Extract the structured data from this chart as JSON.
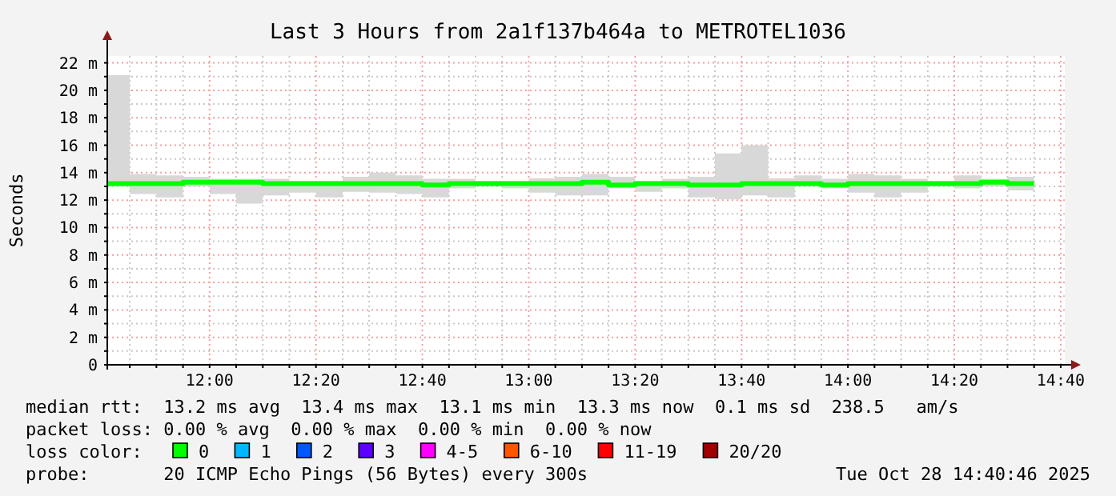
{
  "chart_data": {
    "type": "step",
    "title": "Last 3 Hours from 2a1f137b464a to METROTEL1036",
    "ylabel": "Seconds",
    "x": [
      11.6794,
      11.75,
      11.8333,
      11.9167,
      12,
      12.0833,
      12.1667,
      12.25,
      12.3333,
      12.4167,
      12.5,
      12.5833,
      12.6667,
      12.75,
      12.8333,
      12.9167,
      13,
      13.0833,
      13.1667,
      13.25,
      13.3333,
      13.4167,
      13.5,
      13.5833,
      13.6667,
      13.75,
      13.8333,
      13.9167,
      14,
      14.0833,
      14.1667,
      14.25,
      14.3333,
      14.4167,
      14.5,
      14.5833
    ],
    "series": [
      {
        "name": "0",
        "color": "#00ff00",
        "values": [
          13.2,
          13.2,
          13.2,
          13.3,
          13.3,
          13.3,
          13.2,
          13.2,
          13.2,
          13.2,
          13.2,
          13.2,
          13.1,
          13.2,
          13.2,
          13.2,
          13.2,
          13.2,
          13.3,
          13.1,
          13.2,
          13.2,
          13.1,
          13.1,
          13.2,
          13.2,
          13.2,
          13.1,
          13.2,
          13.2,
          13.2,
          13.2,
          13.2,
          13.3,
          13.2,
          13.2
        ],
        "lower": [
          13.0,
          12.45,
          12.2,
          13.0,
          12.45,
          11.75,
          12.35,
          12.55,
          12.2,
          12.6,
          12.55,
          12.45,
          12.2,
          12.85,
          13.0,
          12.85,
          12.55,
          12.35,
          12.35,
          12.85,
          12.6,
          12.85,
          12.2,
          12.05,
          12.35,
          12.2,
          13.0,
          12.85,
          12.55,
          12.2,
          12.55,
          13.0,
          12.85,
          13.0,
          12.7,
          12.7
        ],
        "upper": [
          21.1,
          13.9,
          13.8,
          13.7,
          13.55,
          13.55,
          13.55,
          13.4,
          13.4,
          13.7,
          14.0,
          13.8,
          13.55,
          13.55,
          13.4,
          13.4,
          13.6,
          13.7,
          13.9,
          13.7,
          13.4,
          13.55,
          13.7,
          15.4,
          16.0,
          13.6,
          13.8,
          13.55,
          13.9,
          13.8,
          13.55,
          13.4,
          13.8,
          13.55,
          13.7,
          13.7
        ]
      },
      {
        "name": "1",
        "color": "#00b8ff",
        "values": [
          null,
          null,
          null,
          null,
          null,
          null,
          null,
          null,
          null,
          null,
          null,
          null,
          null,
          null,
          null,
          null,
          null,
          null,
          null,
          null,
          null,
          null,
          null,
          null,
          null,
          null,
          null,
          null,
          null,
          null,
          null,
          null,
          null,
          null,
          null,
          null
        ]
      },
      {
        "name": "2",
        "color": "#0059ff",
        "values": [
          null,
          null,
          null,
          null,
          null,
          null,
          null,
          null,
          null,
          null,
          null,
          null,
          null,
          null,
          null,
          null,
          null,
          null,
          null,
          null,
          null,
          null,
          null,
          null,
          null,
          null,
          null,
          null,
          null,
          null,
          null,
          null,
          null,
          null,
          null,
          null
        ]
      },
      {
        "name": "3",
        "color": "#5e00ff",
        "values": [
          null,
          null,
          null,
          null,
          null,
          null,
          null,
          null,
          null,
          null,
          null,
          null,
          null,
          null,
          null,
          null,
          null,
          null,
          null,
          null,
          null,
          null,
          null,
          null,
          null,
          null,
          null,
          null,
          null,
          null,
          null,
          null,
          null,
          null,
          null,
          null
        ]
      },
      {
        "name": "4-5",
        "color": "#ff00ff",
        "values": [
          null,
          null,
          null,
          null,
          null,
          null,
          null,
          null,
          null,
          null,
          null,
          null,
          null,
          null,
          null,
          null,
          null,
          null,
          null,
          null,
          null,
          null,
          null,
          null,
          null,
          null,
          null,
          null,
          null,
          null,
          null,
          null,
          null,
          null,
          null,
          null
        ]
      },
      {
        "name": "6-10",
        "color": "#ff5500",
        "values": [
          null,
          null,
          null,
          null,
          null,
          null,
          null,
          null,
          null,
          null,
          null,
          null,
          null,
          null,
          null,
          null,
          null,
          null,
          null,
          null,
          null,
          null,
          null,
          null,
          null,
          null,
          null,
          null,
          null,
          null,
          null,
          null,
          null,
          null,
          null,
          null
        ]
      },
      {
        "name": "11-19",
        "color": "#ff0000",
        "values": [
          null,
          null,
          null,
          null,
          null,
          null,
          null,
          null,
          null,
          null,
          null,
          null,
          null,
          null,
          null,
          null,
          null,
          null,
          null,
          null,
          null,
          null,
          null,
          null,
          null,
          null,
          null,
          null,
          null,
          null,
          null,
          null,
          null,
          null,
          null,
          null
        ]
      },
      {
        "name": "20/20",
        "color": "#a10000",
        "values": [
          null,
          null,
          null,
          null,
          null,
          null,
          null,
          null,
          null,
          null,
          null,
          null,
          null,
          null,
          null,
          null,
          null,
          null,
          null,
          null,
          null,
          null,
          null,
          null,
          null,
          null,
          null,
          null,
          null,
          null,
          null,
          null,
          null,
          null,
          null,
          null
        ]
      }
    ],
    "legend": "bottom",
    "legend_title": "loss color:",
    "grid": true,
    "xlim": [
      11.6794,
      14.6794
    ],
    "ylim": [
      0,
      22.5
    ],
    "xticks": [
      {
        "value": 11.75,
        "label": null
      },
      {
        "value": 11.8333,
        "label": null
      },
      {
        "value": 11.9167,
        "label": null
      },
      {
        "value": 12,
        "label": "12:00"
      },
      {
        "value": 12.0833,
        "label": null
      },
      {
        "value": 12.1667,
        "label": null
      },
      {
        "value": 12.25,
        "label": null
      },
      {
        "value": 12.3333,
        "label": "12:20"
      },
      {
        "value": 12.4167,
        "label": null
      },
      {
        "value": 12.5,
        "label": null
      },
      {
        "value": 12.5833,
        "label": null
      },
      {
        "value": 12.6667,
        "label": "12:40"
      },
      {
        "value": 12.75,
        "label": null
      },
      {
        "value": 12.8333,
        "label": null
      },
      {
        "value": 12.9167,
        "label": null
      },
      {
        "value": 13,
        "label": "13:00"
      },
      {
        "value": 13.0833,
        "label": null
      },
      {
        "value": 13.1667,
        "label": null
      },
      {
        "value": 13.25,
        "label": null
      },
      {
        "value": 13.3333,
        "label": "13:20"
      },
      {
        "value": 13.4167,
        "label": null
      },
      {
        "value": 13.5,
        "label": null
      },
      {
        "value": 13.5833,
        "label": null
      },
      {
        "value": 13.6667,
        "label": "13:40"
      },
      {
        "value": 13.75,
        "label": null
      },
      {
        "value": 13.8333,
        "label": null
      },
      {
        "value": 13.9167,
        "label": null
      },
      {
        "value": 14,
        "label": "14:00"
      },
      {
        "value": 14.0833,
        "label": null
      },
      {
        "value": 14.1667,
        "label": null
      },
      {
        "value": 14.25,
        "label": null
      },
      {
        "value": 14.3333,
        "label": "14:20"
      },
      {
        "value": 14.4167,
        "label": null
      },
      {
        "value": 14.5,
        "label": null
      },
      {
        "value": 14.5833,
        "label": null
      },
      {
        "value": 14.6667,
        "label": "14:40"
      }
    ],
    "yticks": [
      0,
      {
        "value": 1,
        "label": null
      },
      {
        "value": 2,
        "label": "2 m"
      },
      {
        "value": 3,
        "label": null
      },
      {
        "value": 4,
        "label": "4 m"
      },
      {
        "value": 5,
        "label": null
      },
      {
        "value": 6,
        "label": "6 m"
      },
      {
        "value": 7,
        "label": null
      },
      {
        "value": 8,
        "label": "8 m"
      },
      {
        "value": 9,
        "label": null
      },
      {
        "value": 10,
        "label": "10 m"
      },
      {
        "value": 11,
        "label": null
      },
      {
        "value": 12,
        "label": "12 m"
      },
      {
        "value": 13,
        "label": null
      },
      {
        "value": 14,
        "label": "14 m"
      },
      {
        "value": 15,
        "label": null
      },
      {
        "value": 16,
        "label": "16 m"
      },
      {
        "value": 17,
        "label": null
      },
      {
        "value": 18,
        "label": "18 m"
      },
      {
        "value": 19,
        "label": null
      },
      {
        "value": 20,
        "label": "20 m"
      },
      {
        "value": 21,
        "label": null
      },
      {
        "value": 22,
        "label": "22 m"
      }
    ],
    "annotations": [
      "median rtt:  13.2 ms avg  13.4 ms max  13.1 ms min  13.3 ms now  0.1 ms sd  238.5   am/s",
      "packet loss: 0.00 % avg  0.00 % max  0.00 % min  0.00 % now",
      "probe:       20 ICMP Echo Pings (56 Bytes) every 300s",
      "Tue Oct 28 14:40:46 2025"
    ]
  }
}
